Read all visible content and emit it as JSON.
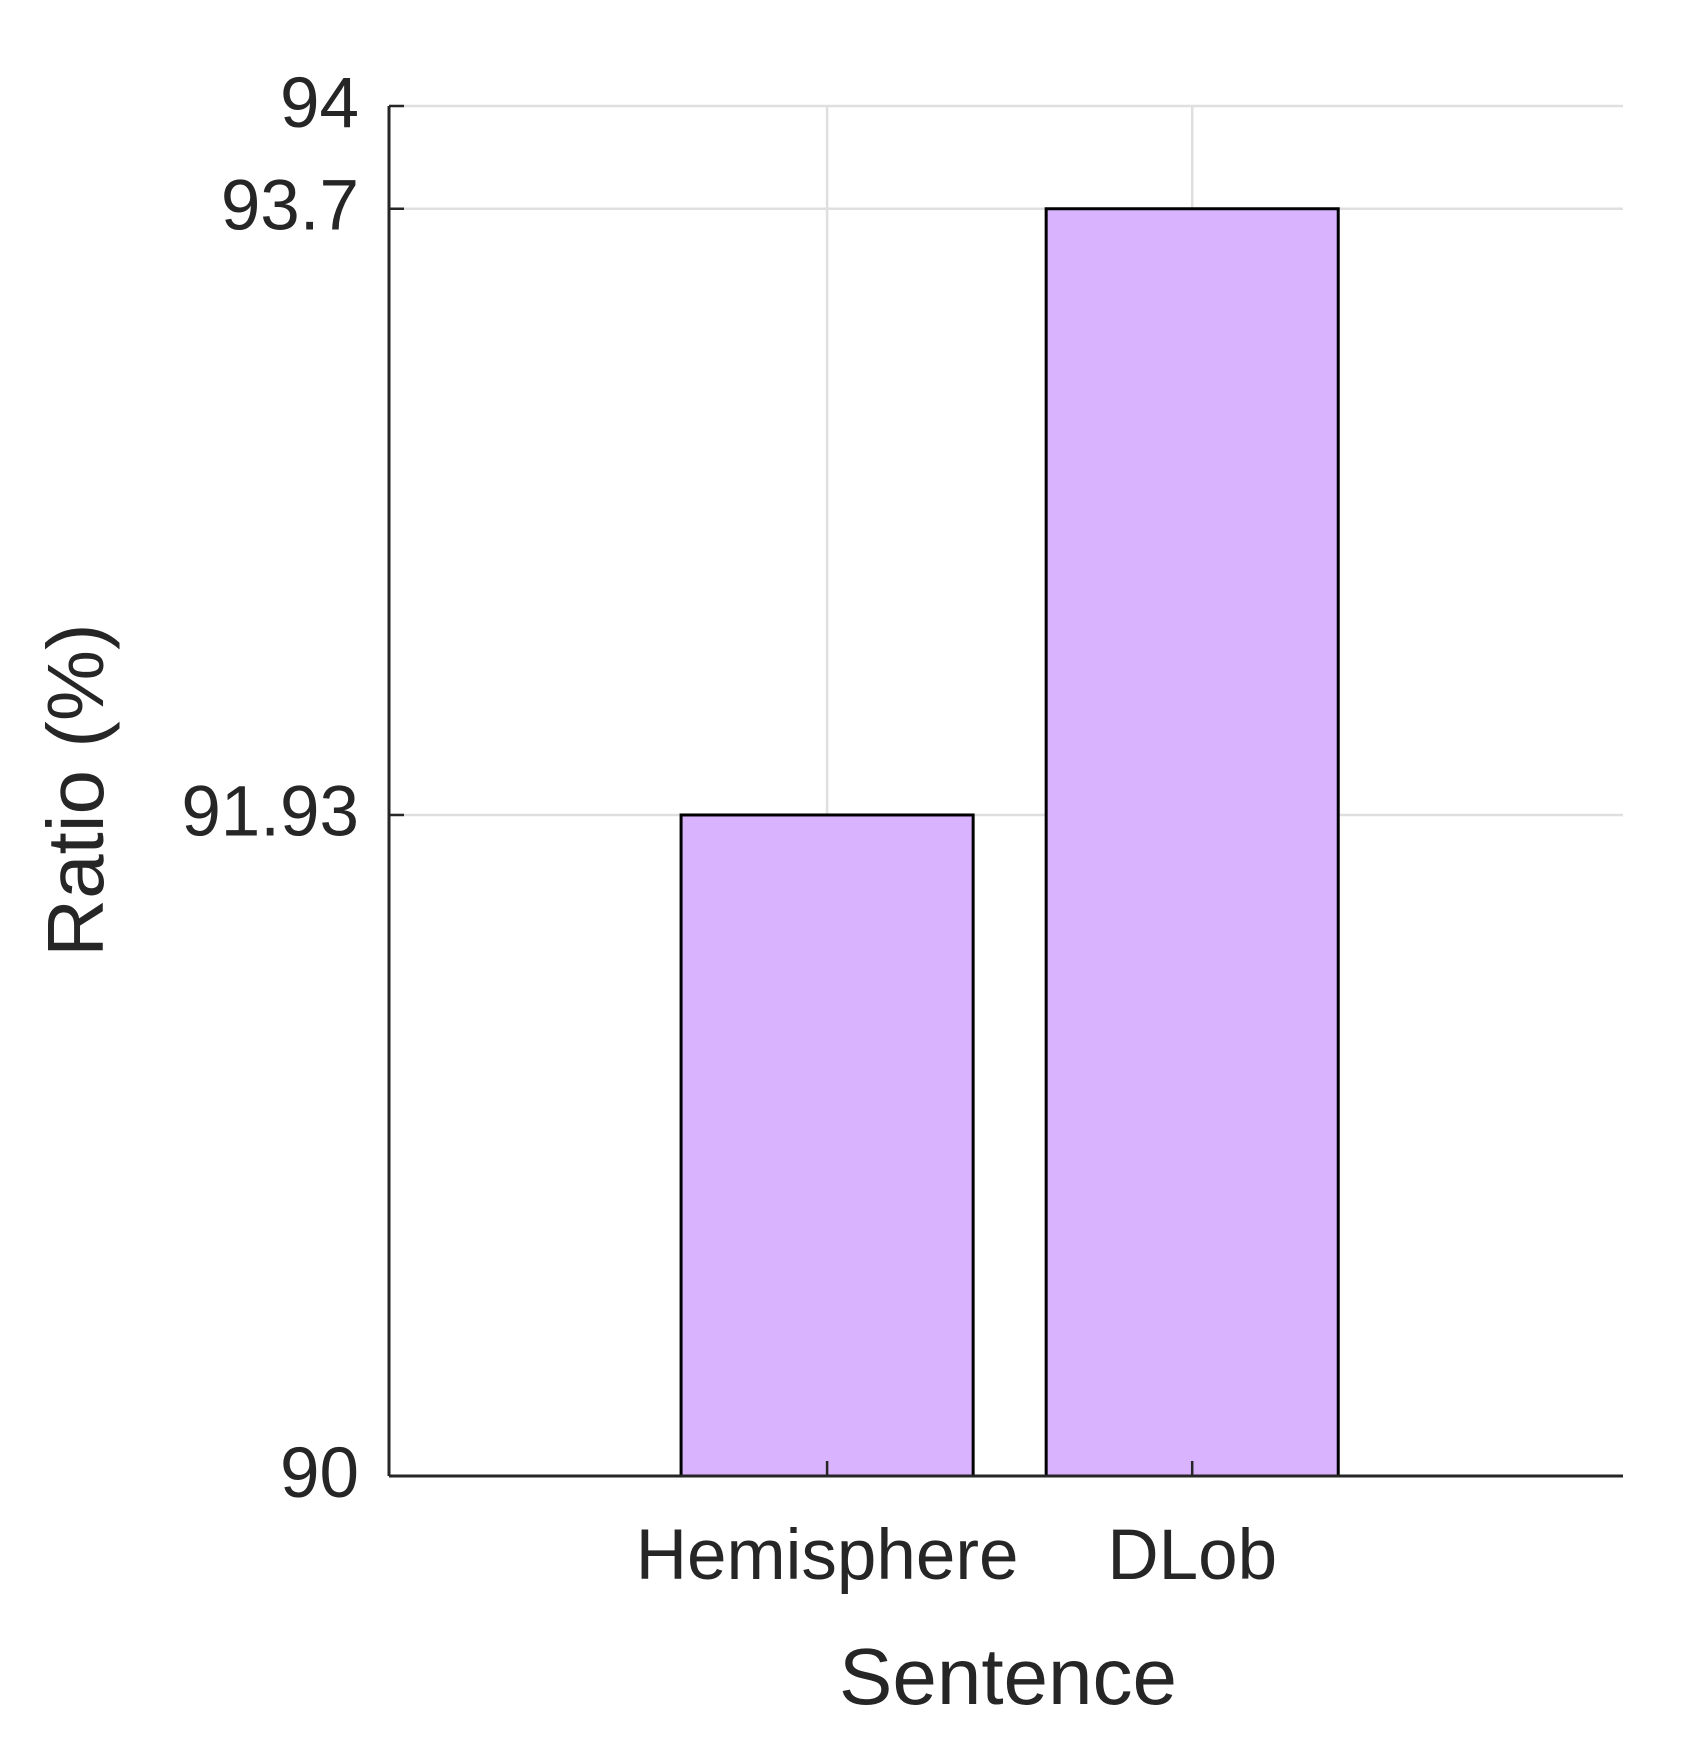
{
  "chart_data": {
    "type": "bar",
    "xlabel": "Sentence",
    "ylabel": "Ratio (%)",
    "categories": [
      "Hemisphere",
      "DLob"
    ],
    "values": [
      91.93,
      93.7
    ],
    "color": "#d9b3fe",
    "ylim": [
      90,
      94
    ],
    "yticks": [
      90,
      91.93,
      93.7,
      94
    ],
    "grid": true
  }
}
